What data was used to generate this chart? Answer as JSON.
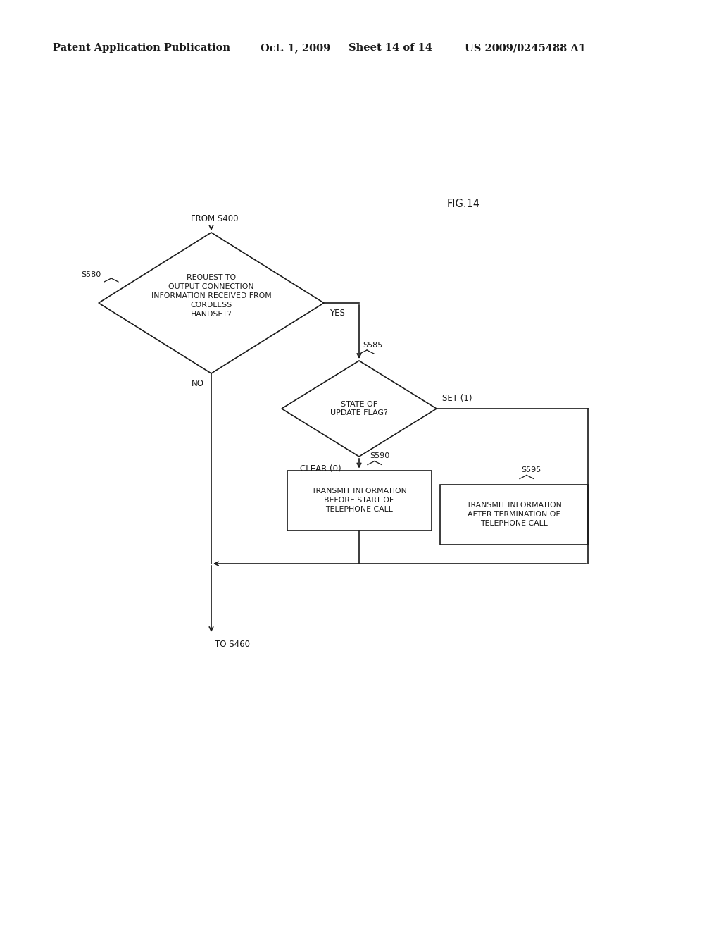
{
  "background_color": "#ffffff",
  "header_text": "Patent Application Publication",
  "header_date": "Oct. 1, 2009",
  "header_sheet": "Sheet 14 of 14",
  "header_patent": "US 2009/0245488 A1",
  "fig_label": "FIG.14",
  "from_label": "FROM S400",
  "to_label": "TO S460",
  "diamond1_label": "REQUEST TO\nOUTPUT CONNECTION\nINFORMATION RECEIVED FROM\nCORDLESS\nHANDSET?",
  "diamond1_step": "S580",
  "diamond1_yes": "YES",
  "diamond1_no": "NO",
  "diamond2_label": "STATE OF\nUPDATE FLAG?",
  "diamond2_step": "S585",
  "diamond2_set": "SET (1)",
  "diamond2_clear": "CLEAR (0)",
  "box1_label": "TRANSMIT INFORMATION\nBEFORE START OF\nTELEPHONE CALL",
  "box1_step": "S590",
  "box2_label": "TRANSMIT INFORMATION\nAFTER TERMINATION OF\nTELEPHONE CALL",
  "box2_step": "S595",
  "line_color": "#1a1a1a",
  "text_color": "#1a1a1a",
  "font_size_header": 10.5,
  "font_size_body": 8.5,
  "font_size_step": 8,
  "font_size_fig": 10.5
}
